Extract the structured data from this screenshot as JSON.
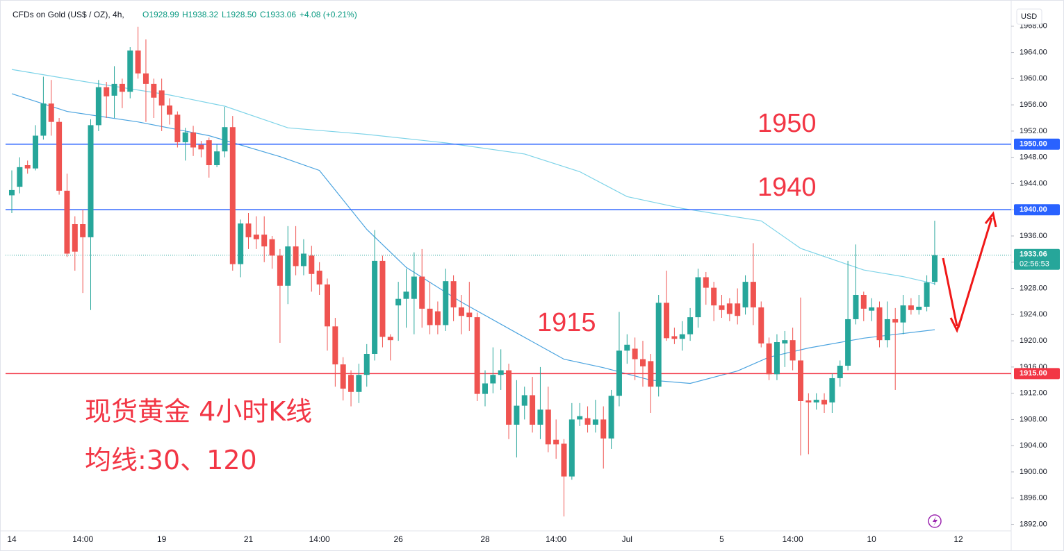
{
  "chart_data": {
    "type": "candlestick",
    "title": "CFDs on Gold (US$ / OZ), 4h,",
    "ohlc_labels": [
      "O1928.99",
      "H1938.32",
      "L1928.50",
      "C1933.06",
      "+4.08 (+0.21%)"
    ],
    "currency": "USD",
    "up_color": "#26a69a",
    "down_color": "#ef5350",
    "categories": [
      "14",
      null,
      null,
      null,
      null,
      null,
      null,
      null,
      null,
      "14:00",
      null,
      null,
      null,
      null,
      null,
      null,
      null,
      null,
      null,
      "19",
      null,
      null,
      null,
      null,
      null,
      null,
      null,
      null,
      null,
      null,
      "21",
      null,
      null,
      null,
      null,
      null,
      null,
      null,
      null,
      "14:00",
      null,
      null,
      null,
      null,
      null,
      null,
      null,
      null,
      null,
      "26",
      null,
      null,
      null,
      null,
      null,
      null,
      null,
      null,
      null,
      null,
      "28",
      null,
      null,
      null,
      null,
      null,
      null,
      null,
      null,
      "14:00",
      null,
      null,
      null,
      null,
      null,
      null,
      null,
      null,
      "Jul",
      null,
      null,
      null,
      null,
      null,
      null,
      null,
      null,
      null,
      null,
      null,
      "5",
      null,
      null,
      null,
      null,
      null,
      null,
      null,
      null,
      "14:00",
      null,
      null,
      null,
      null,
      null,
      null,
      null,
      null,
      null,
      "10",
      null,
      null,
      null,
      null,
      null,
      null,
      null,
      null,
      null,
      null,
      "12"
    ],
    "open": [
      1942.2,
      1943.5,
      1946.8,
      1946.3,
      1951.3,
      1956.2,
      1953.4,
      1942.9,
      1937.8,
      1937.8,
      1935.8,
      1952.9,
      1958.7,
      1957.4,
      1959.2,
      1958,
      1964.3,
      1960.8,
      1959.2,
      1958.2,
      1955.9,
      1954.5,
      1950.3,
      1951.8,
      1949.9,
      1950.6,
      1946.8,
      1948.9,
      1952.6,
      1931.7,
      1937.9,
      1936.2,
      1936.2,
      1935.5,
      1933,
      1928.4,
      1934.4,
      1931.4,
      1933,
      1930.7,
      1928.6,
      1922.2,
      1916.4,
      1914.8,
      1912.2,
      1914.8,
      1918,
      1932.2,
      1920.6,
      1925.4,
      1926.4,
      1926.4,
      1929.8,
      1924.9,
      1924.5,
      1922.4,
      1929.1,
      1925.1,
      1924.3,
      1923.6,
      1911.9,
      1913.5,
      1914.8,
      1915.5,
      1907.2,
      1910.1,
      1911.7,
      1907.2,
      1909.5,
      1904.9,
      1904.3,
      1899.3,
      1908,
      1908.2,
      1907.2,
      1908,
      1905.1,
      1911.6,
      1918.5,
      1918.8,
      1917.2,
      1916.9,
      1913,
      1925.8,
      1920.7,
      1920.3,
      1921,
      1923.6,
      1929.7,
      1928.1,
      1925.4,
      1925.7,
      1925.7,
      1925.1,
      1929,
      1925.1,
      1919.6,
      1914.9,
      1919.6,
      1920.1,
      1917,
      1910.9,
      1910.6,
      1911,
      1910.6,
      1914.3,
      1916.2,
      1923.3,
      1927,
      1924.6,
      1925.1,
      1920.1,
      1923.3,
      1922.8,
      1925.4,
      1924.7,
      1925.2,
      1928.99,
      null,
      null,
      null
    ],
    "high": [
      1946,
      1948,
      1947.5,
      1952.9,
      1960.3,
      1959.8,
      1954,
      1945.5,
      1939,
      1940,
      1953.8,
      1959.8,
      1959.5,
      1961.9,
      1960,
      1964.8,
      1967.9,
      1966,
      1960,
      1960,
      1957,
      1955,
      1952.5,
      1952.8,
      1950.5,
      1951,
      1950,
      1955.7,
      1954.3,
      1938.5,
      1939.5,
      1939,
      1939,
      1936,
      1934,
      1937.5,
      1937.5,
      1935.5,
      1934.5,
      1932,
      1929.5,
      1923.5,
      1917.5,
      1915.5,
      1916.5,
      1919.5,
      1936.9,
      1933,
      1921,
      1929,
      1931,
      1933.5,
      1934,
      1929,
      1926,
      1931,
      1930,
      1927,
      1929,
      1924.3,
      1915.5,
      1919,
      1918.7,
      1916.5,
      1914,
      1913,
      1914.5,
      1916,
      1913,
      1908,
      1905,
      1910.5,
      1910.5,
      1910,
      1911,
      1910,
      1912.5,
      1924.4,
      1921,
      1920.5,
      1920,
      1918,
      1927,
      1930.7,
      1922,
      1923,
      1925,
      1931,
      1930.5,
      1929,
      1927,
      1926.5,
      1928,
      1930,
      1934.9,
      1926,
      1920.5,
      1921,
      1921.5,
      1922,
      1926.6,
      1912,
      1912,
      1912,
      1915,
      1917,
      1932.2,
      1934.7,
      1927.5,
      1926.5,
      1926,
      1926,
      1925,
      1927,
      1926.5,
      1927,
      1930,
      1938.32,
      null,
      null,
      null
    ],
    "low": [
      1939.5,
      1942.5,
      1945.5,
      1946,
      1950.7,
      1951.3,
      1942.3,
      1932.8,
      1930.7,
      1927.3,
      1924.7,
      1952,
      1954,
      1954,
      1955.5,
      1957,
      1960,
      1953.4,
      1954,
      1952,
      1953,
      1949.5,
      1947.5,
      1948.2,
      1948,
      1944.9,
      1946.5,
      1948,
      1930.7,
      1929.7,
      1934,
      1934,
      1932,
      1931,
      1919.7,
      1925.6,
      1930,
      1930,
      1927.5,
      1927,
      1918.5,
      1913,
      1910.9,
      1910,
      1910.5,
      1913,
      1917,
      1919,
      1917,
      1920,
      1922,
      1921,
      1922,
      1921,
      1921,
      1921.5,
      1923,
      1921,
      1921.5,
      1910.8,
      1910,
      1912,
      1912.5,
      1905,
      1902.2,
      1908,
      1906,
      1905,
      1903,
      1902,
      1893.2,
      1898.8,
      1907,
      1906,
      1906,
      1900.5,
      1903.5,
      1910,
      1916.5,
      1914,
      1913,
      1909,
      1911.5,
      1920,
      1919.5,
      1918.5,
      1920,
      1922,
      1925.5,
      1923,
      1923.5,
      1923,
      1922.5,
      1924,
      1922.4,
      1919,
      1914,
      1914,
      1916,
      1915.5,
      1902.5,
      1902.7,
      1909.5,
      1909,
      1909,
      1913,
      1915.5,
      1922.5,
      1923,
      1923,
      1919,
      1919,
      1912.5,
      1921,
      1924,
      1924,
      1924.5,
      1928.5,
      null,
      null,
      null
    ],
    "close": [
      1943,
      1946.5,
      1946.3,
      1951.3,
      1956.2,
      1953.4,
      1942.9,
      1933.3,
      1933.6,
      1935.8,
      1952.9,
      1958.7,
      1957.3,
      1959.2,
      1958,
      1964.3,
      1960.8,
      1959.2,
      1957.1,
      1955.9,
      1954.5,
      1950.3,
      1951.8,
      1949.5,
      1949.2,
      1946.8,
      1948.9,
      1952.6,
      1931.7,
      1937.9,
      1935.8,
      1935.5,
      1934.4,
      1933,
      1928.4,
      1934.4,
      1931.4,
      1933.3,
      1930.2,
      1928.6,
      1922.2,
      1916.4,
      1912.7,
      1912.2,
      1914.8,
      1918,
      1932.2,
      1920.6,
      1920.1,
      1926.4,
      1927.5,
      1929.8,
      1924.9,
      1922.4,
      1922.4,
      1929.1,
      1925.1,
      1923.8,
      1923.6,
      1911.9,
      1913.5,
      1914.8,
      1915.5,
      1907.2,
      1910.1,
      1911.7,
      1907.2,
      1909.5,
      1904.2,
      1904.2,
      1899.3,
      1908,
      1908.5,
      1907.2,
      1908,
      1905.1,
      1911.6,
      1918.5,
      1919.4,
      1917.2,
      1916.1,
      1913,
      1925.8,
      1920.4,
      1920.3,
      1921,
      1923.6,
      1929.7,
      1928.1,
      1925.4,
      1924.7,
      1924.1,
      1923.8,
      1929,
      1925.1,
      1919.6,
      1914.9,
      1919.8,
      1920.1,
      1917,
      1910.8,
      1910.6,
      1911,
      1910.3,
      1914.3,
      1916.2,
      1923.3,
      1927,
      1924.9,
      1925.1,
      1920.1,
      1923.3,
      1922.8,
      1925.4,
      1924.7,
      1925.2,
      1928.9,
      1933.06,
      null,
      null,
      null
    ],
    "series": [
      {
        "color": "#7dd3e8",
        "x": [
          0,
          10,
          20,
          27,
          35,
          45,
          55,
          65,
          72,
          78,
          85,
          95,
          100,
          108,
          113,
          117
        ],
        "values": [
          1961.4,
          1959.4,
          1957.5,
          1955.8,
          1952.5,
          1951.5,
          1950.2,
          1948.5,
          1945.8,
          1942,
          1940.2,
          1938.3,
          1934.1,
          1930.8,
          1929.8,
          1928.7
        ]
      },
      {
        "color": "#4aa3df",
        "x": [
          0,
          7,
          16,
          25,
          34,
          39,
          45,
          50,
          57,
          64,
          70,
          75,
          81,
          86,
          92,
          96,
          101,
          108,
          117
        ],
        "values": [
          1957.7,
          1955,
          1953.4,
          1951.3,
          1948.1,
          1946,
          1937,
          1931.2,
          1925.9,
          1921.2,
          1917.2,
          1915.9,
          1914,
          1913.5,
          1915.4,
          1917.5,
          1918.9,
          1920.4,
          1921.7
        ]
      }
    ],
    "ylim": [
      1891,
      1972
    ],
    "yticks": [
      {
        "value": 1892,
        "label": "1892.00"
      },
      {
        "value": 1896,
        "label": "1896.00"
      },
      {
        "value": 1900,
        "label": "1900.00"
      },
      {
        "value": 1904,
        "label": "1904.00"
      },
      {
        "value": 1908,
        "label": "1908.00"
      },
      {
        "value": 1912,
        "label": "1912.00"
      },
      {
        "value": 1916,
        "label": "1916.00"
      },
      {
        "value": 1920,
        "label": "1920.00"
      },
      {
        "value": 1924,
        "label": "1924.00"
      },
      {
        "value": 1928,
        "label": "1928.00"
      },
      {
        "value": 1932,
        "label": "1932.00"
      },
      {
        "value": 1936,
        "label": "1936.00"
      },
      {
        "value": 1940,
        "label": "1940.00"
      },
      {
        "value": 1944,
        "label": "1944.00"
      },
      {
        "value": 1948,
        "label": "1948.00"
      },
      {
        "value": 1952,
        "label": "1952.00"
      },
      {
        "value": 1956,
        "label": "1956.00"
      },
      {
        "value": 1960,
        "label": "1960.00"
      },
      {
        "value": 1964,
        "label": "1964.00"
      },
      {
        "value": 1968,
        "label": "1968.00"
      }
    ],
    "hlines": [
      {
        "value": 1950,
        "label": "1950.00",
        "color": "#2962ff"
      },
      {
        "value": 1940,
        "label": "1940.00",
        "color": "#2962ff"
      },
      {
        "value": 1915,
        "label": "1915.00",
        "color": "#f23645"
      }
    ],
    "last_price": 1933.06,
    "countdown": "02:56:53",
    "annotations": [
      "1950",
      "1940",
      "1915",
      "现货黄金 4小时K线",
      "均线:30、120"
    ]
  }
}
